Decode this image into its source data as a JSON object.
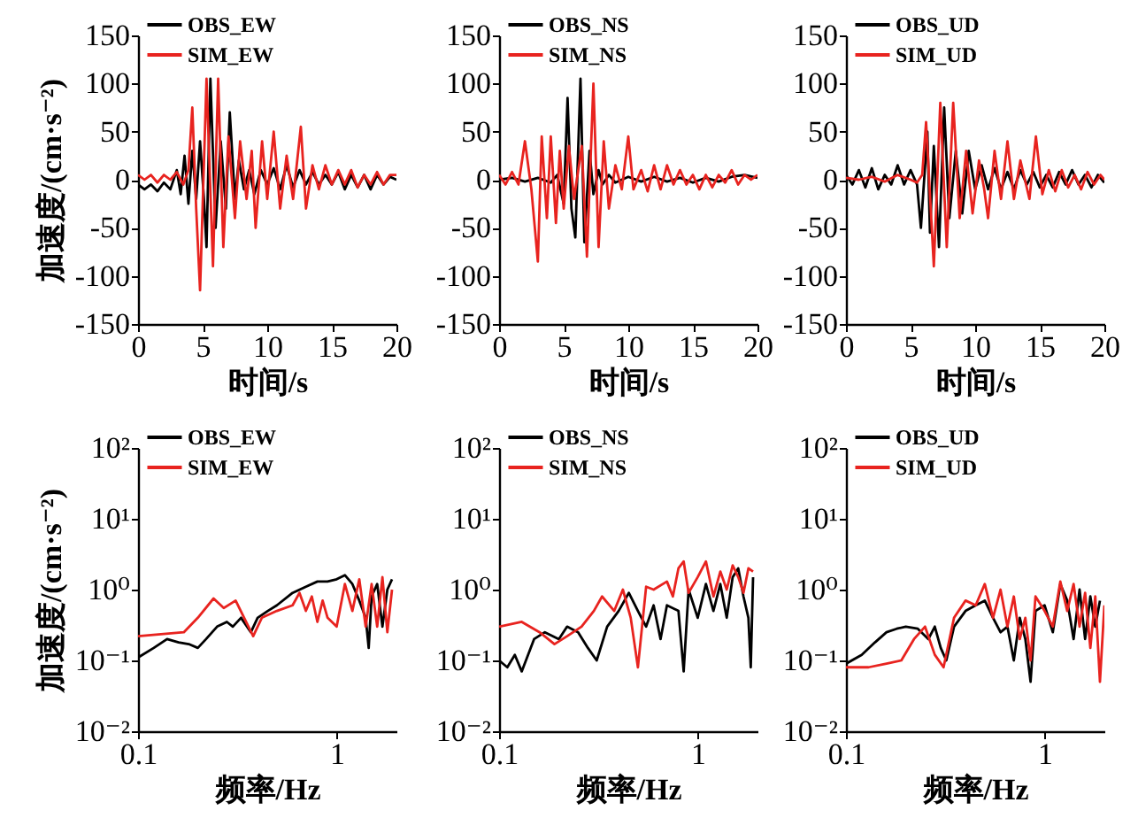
{
  "chart_data": [
    {
      "type": "line",
      "ylabel": "加速度/(cm·s⁻²)",
      "xlabel": "时间/s",
      "xlim": [
        0,
        20
      ],
      "xticks": [
        0,
        5,
        10,
        15,
        20
      ],
      "ylim": [
        -150,
        150
      ],
      "yticks": [
        -150,
        -100,
        -50,
        0,
        50,
        100,
        150
      ],
      "legend": "top left",
      "series": [
        {
          "name": "OBS_EW",
          "color": "#000000",
          "x": [
            0,
            0.5,
            1,
            1.5,
            2,
            2.5,
            3,
            3.3,
            3.6,
            3.9,
            4.2,
            4.5,
            4.8,
            5.1,
            5.3,
            5.6,
            6,
            6.4,
            6.8,
            7.1,
            7.5,
            7.8,
            8.2,
            8.6,
            9,
            9.5,
            10,
            10.5,
            11,
            11.5,
            12,
            12.5,
            13,
            13.5,
            14,
            14.5,
            15,
            15.5,
            16,
            16.5,
            17,
            17.5,
            18,
            18.5,
            19,
            19.5,
            20
          ],
          "values": [
            -5,
            -10,
            -5,
            -12,
            -3,
            -10,
            10,
            -15,
            25,
            -25,
            30,
            -20,
            40,
            -20,
            -70,
            105,
            -50,
            40,
            -30,
            70,
            -20,
            20,
            -10,
            10,
            -15,
            10,
            -5,
            12,
            -10,
            15,
            -8,
            10,
            -5,
            8,
            -5,
            5,
            -5,
            8,
            -10,
            5,
            -8,
            5,
            -10,
            5,
            -5,
            3,
            0
          ]
        },
        {
          "name": "SIM_EW",
          "color": "#e8231f",
          "x": [
            0,
            0.5,
            1,
            1.5,
            2,
            2.5,
            3,
            3.5,
            3.9,
            4.2,
            4.5,
            4.8,
            5.3,
            5.8,
            6.2,
            6.6,
            7,
            7.5,
            7.9,
            8.4,
            8.8,
            9.1,
            9.6,
            10,
            10.5,
            11,
            11.5,
            12,
            12.6,
            13,
            13.5,
            14,
            14.5,
            15,
            15.5,
            16,
            16.5,
            17,
            17.5,
            18,
            18.5,
            19,
            19.5,
            20
          ],
          "values": [
            5,
            0,
            5,
            -3,
            5,
            0,
            8,
            -5,
            10,
            75,
            -30,
            -115,
            105,
            -90,
            105,
            -70,
            45,
            -40,
            40,
            -20,
            30,
            -50,
            40,
            -20,
            50,
            -30,
            25,
            -20,
            55,
            -30,
            15,
            -10,
            15,
            -5,
            10,
            -5,
            10,
            -8,
            5,
            -5,
            8,
            -5,
            5,
            5
          ]
        }
      ]
    },
    {
      "type": "line",
      "xlabel": "时间/s",
      "xlim": [
        0,
        20
      ],
      "xticks": [
        0,
        5,
        10,
        15,
        20
      ],
      "ylim": [
        -150,
        150
      ],
      "yticks": [
        -150,
        -100,
        -50,
        0,
        50,
        100,
        150
      ],
      "legend": "top left",
      "series": [
        {
          "name": "OBS_NS",
          "color": "#000000",
          "x": [
            0,
            1,
            2,
            3,
            4,
            4.5,
            5,
            5.3,
            5.6,
            5.9,
            6.3,
            6.6,
            7,
            7.3,
            7.7,
            8,
            8.5,
            9,
            10,
            11,
            12,
            13,
            14,
            15,
            16,
            17,
            18,
            19,
            20
          ],
          "values": [
            0,
            2,
            -2,
            2,
            -3,
            5,
            -25,
            85,
            -30,
            -60,
            105,
            -65,
            30,
            -15,
            10,
            -5,
            5,
            -3,
            3,
            -2,
            3,
            -2,
            2,
            -3,
            2,
            -2,
            3,
            5,
            2
          ]
        },
        {
          "name": "SIM_NS",
          "color": "#e8231f",
          "x": [
            0,
            0.5,
            1,
            1.5,
            2,
            2.5,
            3,
            3.3,
            3.7,
            4,
            4.4,
            4.7,
            5,
            5.4,
            5.8,
            6.4,
            6.8,
            7.3,
            7.7,
            8.1,
            8.5,
            9,
            9.5,
            10,
            10.4,
            11,
            11.5,
            12,
            12.5,
            13,
            13.5,
            14,
            14.5,
            15,
            15.5,
            16,
            16.5,
            17,
            17.5,
            18,
            18.5,
            19,
            19.5,
            20
          ],
          "values": [
            5,
            -5,
            8,
            -5,
            40,
            -10,
            -85,
            45,
            -40,
            45,
            -45,
            30,
            -30,
            35,
            -20,
            35,
            -80,
            100,
            -70,
            40,
            -30,
            15,
            -10,
            45,
            -10,
            10,
            -12,
            15,
            -10,
            15,
            -5,
            10,
            -5,
            5,
            -10,
            5,
            -8,
            5,
            -3,
            10,
            -5,
            5,
            0,
            5
          ]
        }
      ]
    },
    {
      "type": "line",
      "xlabel": "时间/s",
      "xlim": [
        0,
        20
      ],
      "xticks": [
        0,
        5,
        10,
        15,
        20
      ],
      "ylim": [
        -150,
        150
      ],
      "yticks": [
        -150,
        -100,
        -50,
        0,
        50,
        100,
        150
      ],
      "legend": "top left",
      "series": [
        {
          "name": "OBS_UD",
          "color": "#000000",
          "x": [
            0,
            0.5,
            1,
            1.5,
            2,
            2.5,
            3,
            3.5,
            4,
            4.5,
            5,
            5.5,
            5.8,
            6.3,
            6.5,
            6.8,
            7.2,
            7.6,
            8,
            8.5,
            9,
            9.5,
            10,
            10.5,
            11,
            11.5,
            12,
            12.5,
            13,
            13.5,
            14,
            14.5,
            15,
            15.5,
            16,
            16.5,
            17,
            17.5,
            18,
            18.5,
            19,
            19.5,
            20
          ],
          "values": [
            5,
            -5,
            10,
            -8,
            12,
            -10,
            5,
            -5,
            15,
            -5,
            10,
            -5,
            -50,
            50,
            -55,
            35,
            -70,
            75,
            -40,
            30,
            -35,
            30,
            -10,
            15,
            -10,
            12,
            -10,
            8,
            -10,
            10,
            -5,
            8,
            -8,
            5,
            -8,
            8,
            -5,
            10,
            -5,
            5,
            -8,
            5,
            -3
          ]
        },
        {
          "name": "SIM_UD",
          "color": "#e8231f",
          "x": [
            0,
            1,
            2,
            3,
            4,
            5,
            5.5,
            5.9,
            6.2,
            6.8,
            7.3,
            7.8,
            8.3,
            8.8,
            9.3,
            9.8,
            10.3,
            10.7,
            11,
            11.5,
            12,
            12.5,
            13,
            13.5,
            14.2,
            14.7,
            15.2,
            15.7,
            16.2,
            16.7,
            17.2,
            17.7,
            18.2,
            18.7,
            19.2,
            19.7,
            20
          ],
          "values": [
            2,
            0,
            3,
            -2,
            5,
            0,
            -3,
            5,
            60,
            -90,
            80,
            -70,
            80,
            -40,
            30,
            -35,
            20,
            -10,
            -40,
            30,
            -20,
            40,
            -20,
            20,
            -20,
            45,
            -15,
            10,
            -12,
            10,
            -8,
            5,
            -10,
            8,
            -5,
            5,
            0
          ]
        }
      ]
    },
    {
      "type": "line",
      "ylabel": "加速度/(cm·s⁻²)",
      "xlabel": "频率/Hz",
      "log": "xy",
      "xlim": [
        0.1,
        2
      ],
      "xticks": [
        0.1,
        1
      ],
      "ylim": [
        0.01,
        100
      ],
      "yticks": [
        {
          "value": 0.01,
          "label": "10⁻²"
        },
        {
          "value": 0.1,
          "label": "10⁻¹"
        },
        {
          "value": 1,
          "label": "10⁰"
        },
        {
          "value": 10,
          "label": "10¹"
        },
        {
          "value": 100,
          "label": "10²"
        }
      ],
      "legend": "top left",
      "series": [
        {
          "name": "OBS_EW",
          "color": "#000000",
          "x": [
            0.1,
            0.12,
            0.14,
            0.16,
            0.18,
            0.2,
            0.22,
            0.25,
            0.28,
            0.3,
            0.33,
            0.37,
            0.4,
            0.45,
            0.5,
            0.6,
            0.7,
            0.8,
            0.9,
            1.0,
            1.1,
            1.2,
            1.3,
            1.4,
            1.45,
            1.5,
            1.6,
            1.7,
            1.8,
            1.9
          ],
          "values": [
            0.11,
            0.15,
            0.2,
            0.18,
            0.17,
            0.15,
            0.2,
            0.3,
            0.35,
            0.3,
            0.4,
            0.25,
            0.4,
            0.5,
            0.6,
            0.9,
            1.1,
            1.3,
            1.3,
            1.4,
            1.6,
            1.2,
            0.7,
            0.4,
            0.15,
            0.8,
            1.2,
            0.3,
            1.0,
            1.4
          ]
        },
        {
          "name": "SIM_EW",
          "color": "#e8231f",
          "x": [
            0.1,
            0.17,
            0.2,
            0.24,
            0.27,
            0.31,
            0.35,
            0.38,
            0.42,
            0.5,
            0.6,
            0.65,
            0.7,
            0.75,
            0.8,
            0.85,
            0.9,
            1.0,
            1.1,
            1.2,
            1.3,
            1.4,
            1.5,
            1.6,
            1.7,
            1.8,
            1.9
          ],
          "values": [
            0.22,
            0.25,
            0.4,
            0.75,
            0.55,
            0.7,
            0.35,
            0.22,
            0.4,
            0.5,
            0.6,
            0.9,
            0.5,
            0.8,
            0.35,
            0.7,
            0.4,
            0.3,
            1.2,
            0.5,
            1.4,
            0.3,
            1.2,
            0.3,
            1.5,
            0.25,
            1.0
          ]
        }
      ]
    },
    {
      "type": "line",
      "xlabel": "频率/Hz",
      "log": "xy",
      "xlim": [
        0.1,
        2
      ],
      "xticks": [
        0.1,
        1
      ],
      "ylim": [
        0.01,
        100
      ],
      "yticks": [
        {
          "value": 0.01,
          "label": "10⁻²"
        },
        {
          "value": 0.1,
          "label": "10⁻¹"
        },
        {
          "value": 1,
          "label": "10⁰"
        },
        {
          "value": 10,
          "label": "10¹"
        },
        {
          "value": 100,
          "label": "10²"
        }
      ],
      "legend": "top left",
      "series": [
        {
          "name": "OBS_NS",
          "color": "#000000",
          "x": [
            0.1,
            0.11,
            0.12,
            0.13,
            0.15,
            0.17,
            0.2,
            0.22,
            0.25,
            0.28,
            0.31,
            0.35,
            0.4,
            0.45,
            0.5,
            0.55,
            0.6,
            0.65,
            0.7,
            0.8,
            0.85,
            0.9,
            1.0,
            1.1,
            1.2,
            1.3,
            1.4,
            1.5,
            1.6,
            1.7,
            1.8,
            1.85,
            1.9
          ],
          "values": [
            0.1,
            0.08,
            0.12,
            0.07,
            0.2,
            0.25,
            0.2,
            0.3,
            0.25,
            0.15,
            0.1,
            0.3,
            0.5,
            0.9,
            0.5,
            0.3,
            0.6,
            0.2,
            0.6,
            0.5,
            0.07,
            1.0,
            0.4,
            1.2,
            0.5,
            1.2,
            0.4,
            1.5,
            2.0,
            0.8,
            0.4,
            0.08,
            1.5
          ]
        },
        {
          "name": "SIM_NS",
          "color": "#e8231f",
          "x": [
            0.1,
            0.13,
            0.16,
            0.19,
            0.22,
            0.26,
            0.3,
            0.33,
            0.38,
            0.42,
            0.46,
            0.5,
            0.55,
            0.6,
            0.7,
            0.75,
            0.8,
            0.85,
            0.9,
            1.0,
            1.1,
            1.2,
            1.3,
            1.4,
            1.5,
            1.6,
            1.7,
            1.8,
            1.9
          ],
          "values": [
            0.3,
            0.35,
            0.25,
            0.17,
            0.22,
            0.3,
            0.5,
            0.8,
            0.5,
            1.0,
            0.4,
            0.08,
            1.1,
            1.0,
            1.3,
            0.8,
            2.0,
            2.5,
            0.9,
            1.5,
            2.5,
            0.8,
            1.8,
            1.0,
            2.2,
            1.5,
            0.9,
            2.0,
            1.8
          ]
        }
      ]
    },
    {
      "type": "line",
      "xlabel": "频率/Hz",
      "log": "xy",
      "xlim": [
        0.1,
        2
      ],
      "xticks": [
        0.1,
        1
      ],
      "ylim": [
        0.01,
        100
      ],
      "yticks": [
        {
          "value": 0.01,
          "label": "10⁻²"
        },
        {
          "value": 0.1,
          "label": "10⁻¹"
        },
        {
          "value": 1,
          "label": "10⁰"
        },
        {
          "value": 10,
          "label": "10¹"
        },
        {
          "value": 100,
          "label": "10²"
        }
      ],
      "legend": "top left",
      "series": [
        {
          "name": "OBS_UD",
          "color": "#000000",
          "x": [
            0.1,
            0.12,
            0.14,
            0.16,
            0.18,
            0.2,
            0.23,
            0.26,
            0.28,
            0.3,
            0.32,
            0.35,
            0.4,
            0.45,
            0.5,
            0.55,
            0.6,
            0.65,
            0.7,
            0.75,
            0.8,
            0.85,
            0.9,
            1.0,
            1.1,
            1.2,
            1.3,
            1.4,
            1.5,
            1.6,
            1.7,
            1.8,
            1.9
          ],
          "values": [
            0.09,
            0.12,
            0.18,
            0.25,
            0.28,
            0.3,
            0.28,
            0.2,
            0.3,
            0.15,
            0.1,
            0.3,
            0.5,
            0.6,
            0.7,
            0.4,
            0.25,
            0.3,
            0.1,
            0.4,
            0.2,
            0.05,
            0.5,
            0.6,
            0.25,
            1.2,
            0.7,
            0.2,
            1.0,
            0.2,
            0.8,
            0.3,
            0.7
          ]
        },
        {
          "name": "SIM_UD",
          "color": "#e8231f",
          "x": [
            0.1,
            0.13,
            0.16,
            0.19,
            0.22,
            0.25,
            0.28,
            0.31,
            0.35,
            0.4,
            0.45,
            0.5,
            0.55,
            0.6,
            0.65,
            0.7,
            0.75,
            0.8,
            0.85,
            0.9,
            1.0,
            1.1,
            1.2,
            1.3,
            1.4,
            1.5,
            1.6,
            1.7,
            1.8,
            1.9,
            2.0
          ],
          "values": [
            0.08,
            0.08,
            0.09,
            0.1,
            0.2,
            0.3,
            0.12,
            0.08,
            0.4,
            0.7,
            0.6,
            1.2,
            0.4,
            1.0,
            0.3,
            0.8,
            0.2,
            0.4,
            0.1,
            0.8,
            0.5,
            0.3,
            1.3,
            0.5,
            1.2,
            0.3,
            0.9,
            0.15,
            0.8,
            0.05,
            0.6
          ]
        }
      ]
    }
  ]
}
